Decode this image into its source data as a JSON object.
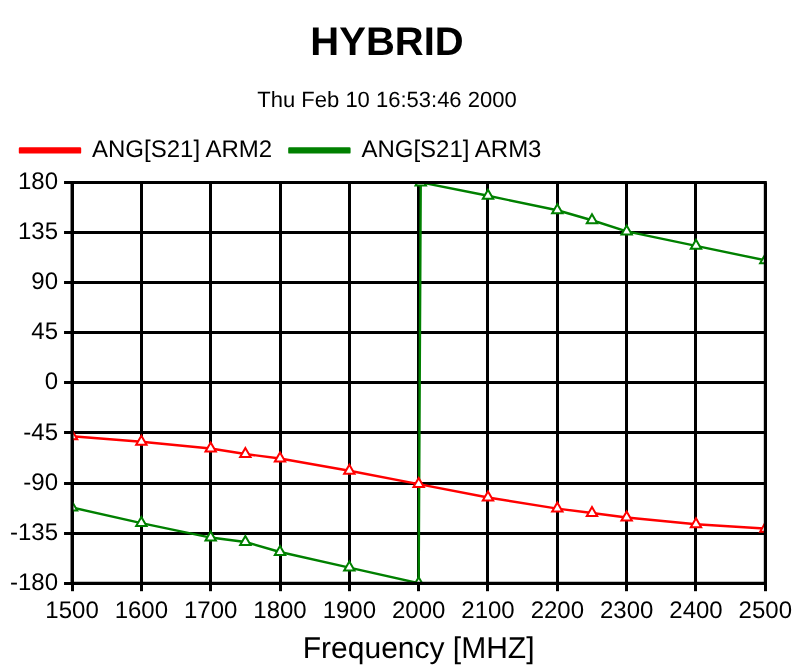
{
  "chart_data": {
    "type": "line",
    "title": "HYBRID",
    "subtitle": "Thu Feb 10 16:53:46 2000",
    "xlabel": "Frequency [MHZ]",
    "xlim": [
      1500,
      2500
    ],
    "xticks": [
      1500,
      1600,
      1700,
      1800,
      1900,
      2000,
      2100,
      2200,
      2300,
      2400,
      2500
    ],
    "ylim": [
      -180,
      180
    ],
    "yticks": [
      -180,
      -135,
      -90,
      -45,
      0,
      45,
      90,
      135,
      180
    ],
    "grid": true,
    "legend": "top left",
    "marker": "triangle",
    "line_style": "solid",
    "series": [
      {
        "name": "ANG[S21] ARM2",
        "color": "#ff0000",
        "x": [
          1500,
          1600,
          1700,
          1750,
          1800,
          1900,
          2000,
          2100,
          2200,
          2250,
          2300,
          2400,
          2500
        ],
        "values": [
          -48,
          -53,
          -59,
          -64,
          -68,
          -79,
          -91,
          -103,
          -113,
          -117,
          -121,
          -127,
          -131
        ]
      },
      {
        "name": "ANG[S21] ARM3",
        "color": "#008000",
        "x": [
          1500,
          1600,
          1700,
          1750,
          1800,
          1900,
          2000,
          2003,
          2100,
          2200,
          2250,
          2300,
          2400,
          2500
        ],
        "values": [
          -112,
          -126,
          -139,
          -143,
          -152,
          -166,
          -180,
          180,
          168,
          155,
          146,
          136,
          123,
          110
        ]
      }
    ]
  }
}
